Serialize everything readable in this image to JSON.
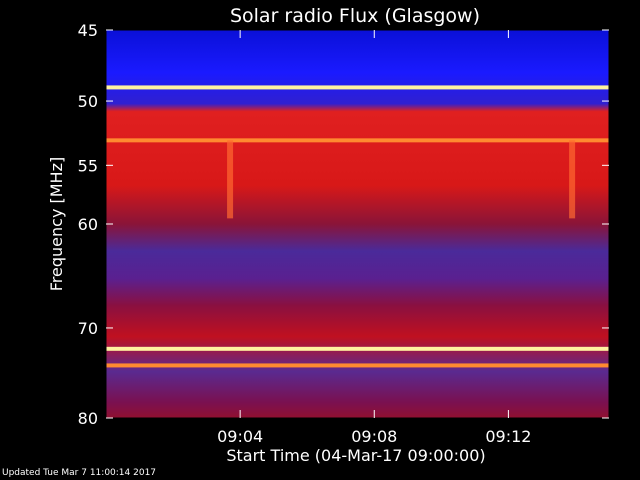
{
  "chart_data": {
    "type": "heatmap",
    "title": "Solar radio Flux (Glasgow)",
    "xlabel": "Start Time (04-Mar-17 09:00:00)",
    "ylabel": "Frequency [MHz]",
    "x_ticks": [
      "09:04",
      "09:08",
      "09:12"
    ],
    "x_tick_minutes": [
      4,
      8,
      12
    ],
    "xlim_minutes": [
      0,
      15
    ],
    "y_ticks": [
      45,
      50,
      55,
      60,
      70,
      80
    ],
    "ylim": [
      45,
      80
    ],
    "y_scale": "log",
    "color_scale": "blue (low) to red to yellow-white (high)",
    "bright_lines_mhz": [
      49.0,
      53.0,
      72.2,
      74.0
    ],
    "time_marks_minutes": [
      3.7,
      13.9
    ]
  },
  "footer": {
    "updated": "Updated Tue Mar  7 11:00:14 2017"
  }
}
